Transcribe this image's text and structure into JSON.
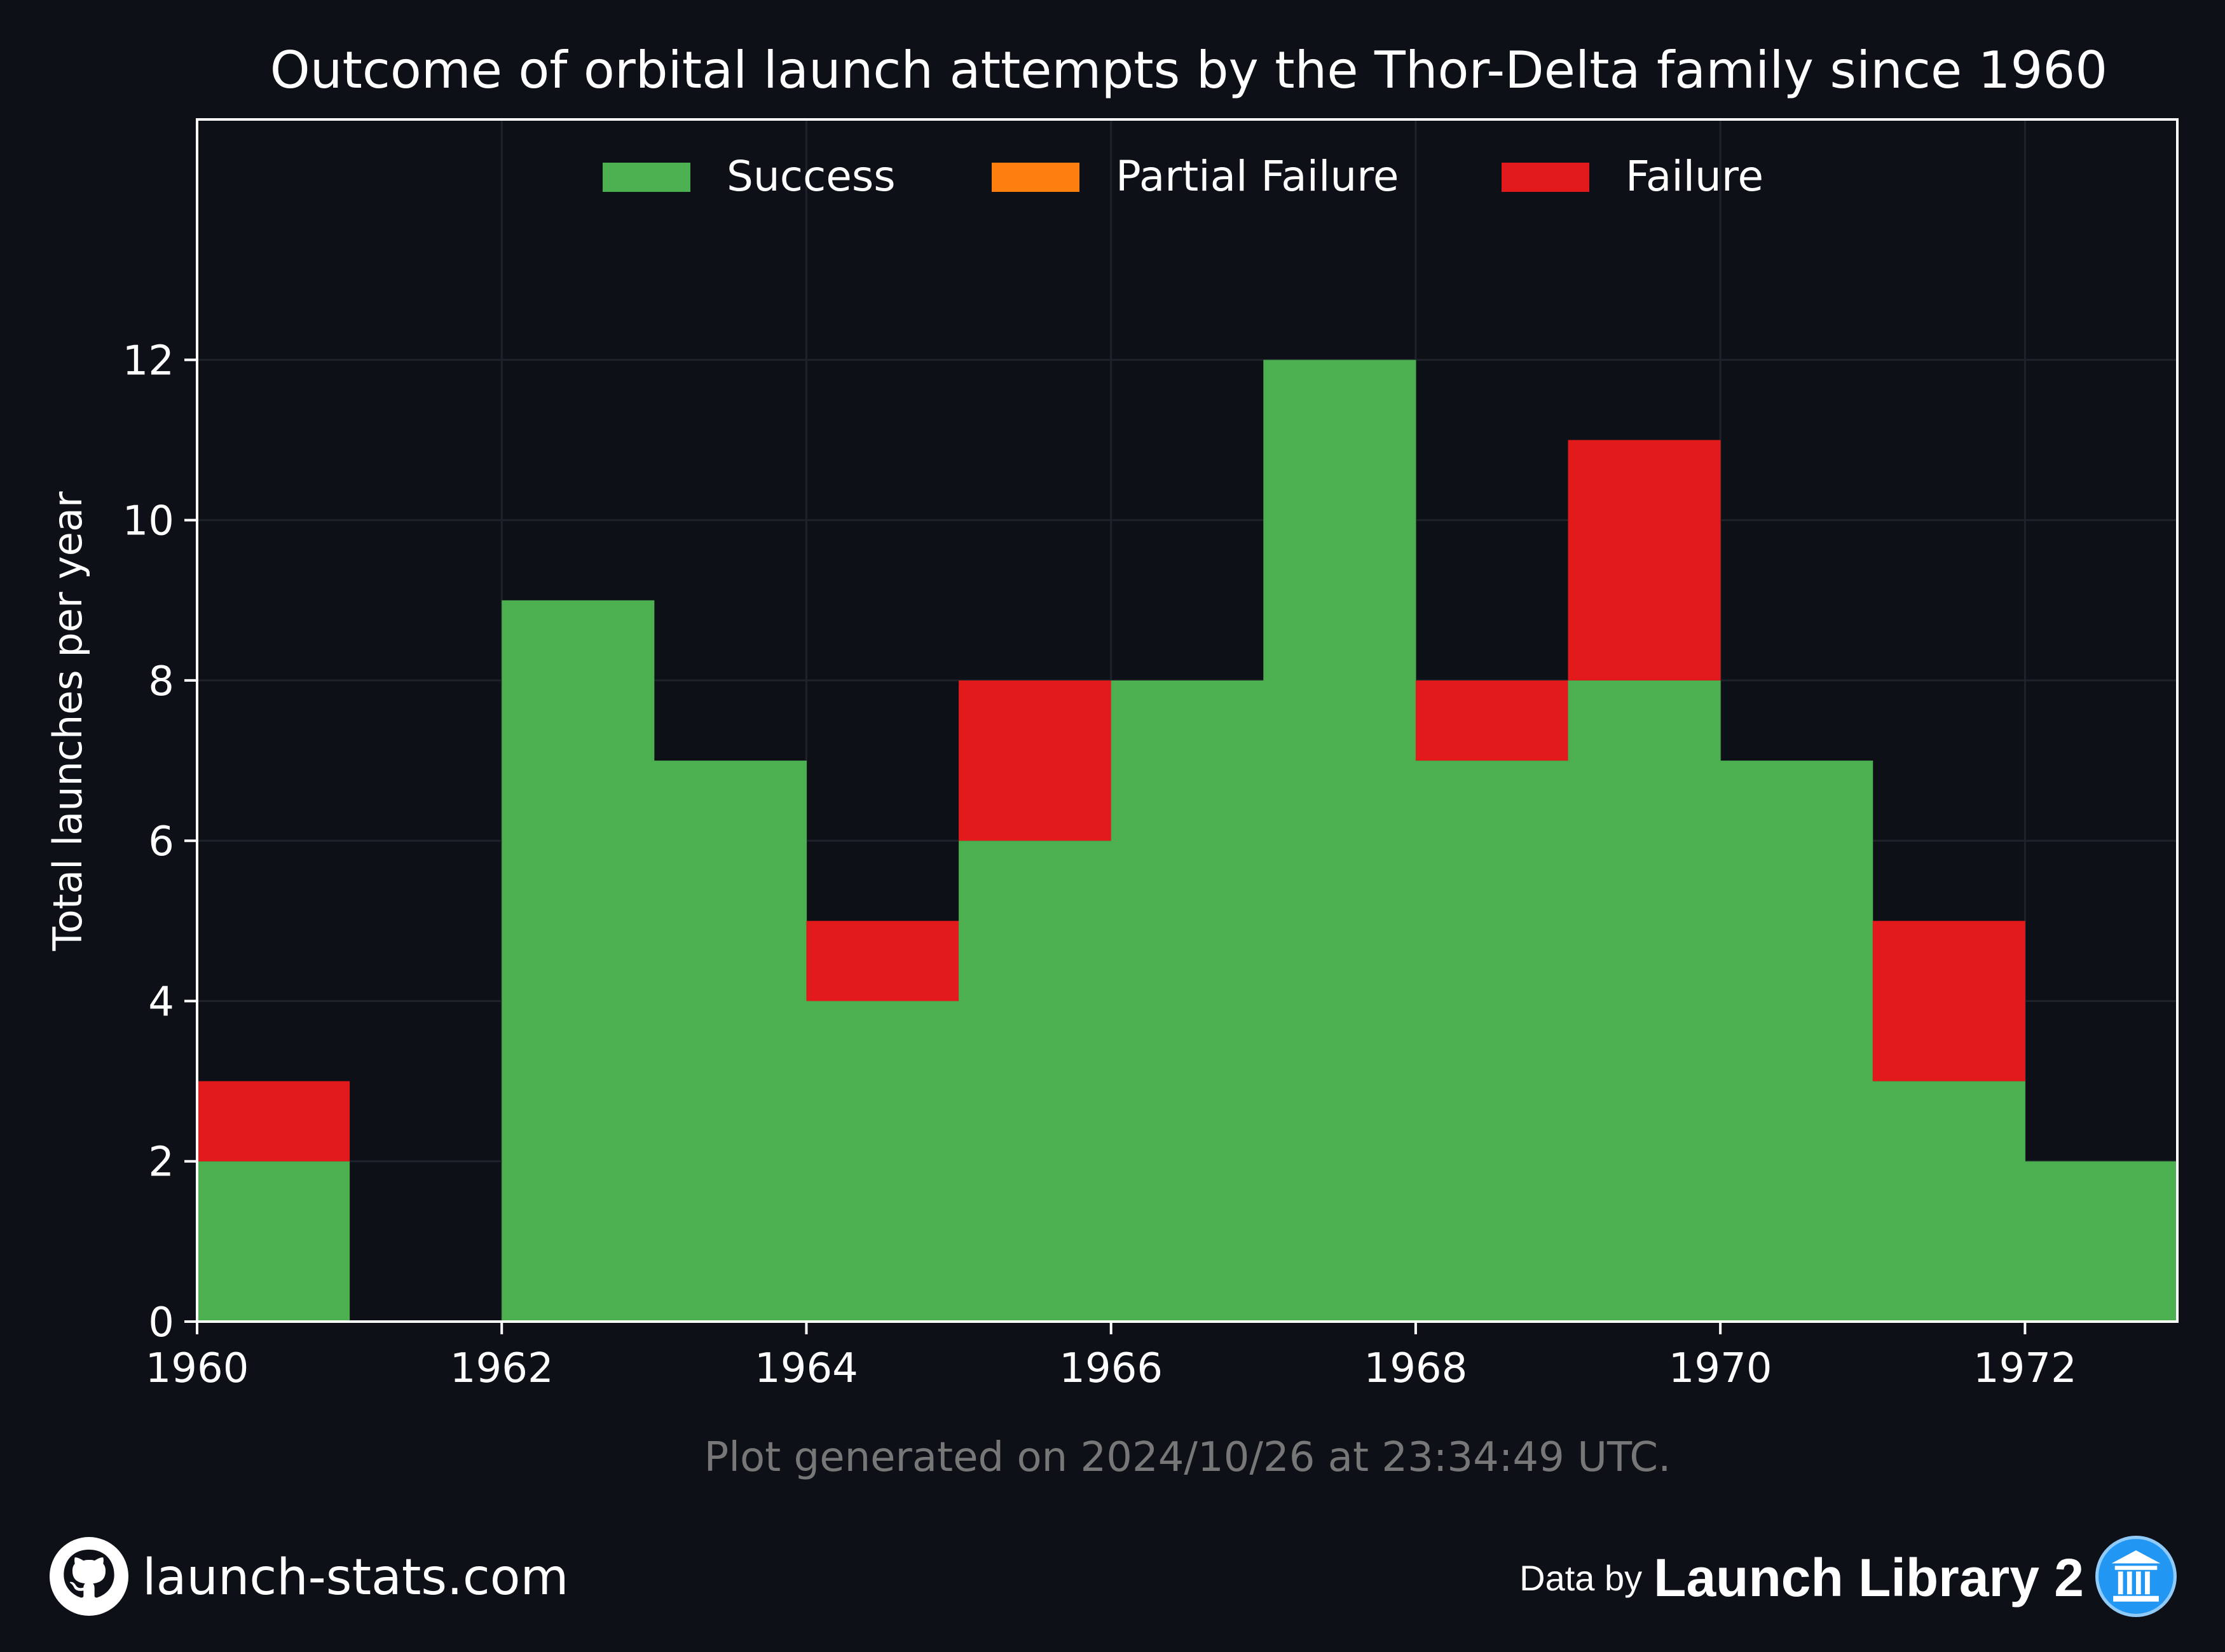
{
  "chart_data": {
    "type": "bar",
    "stacked": true,
    "title": "Outcome of orbital launch attempts by the Thor-Delta family since 1960",
    "xlabel": "",
    "ylabel": "Total launches per year",
    "categories": [
      1960,
      1961,
      1962,
      1963,
      1964,
      1965,
      1966,
      1967,
      1968,
      1969,
      1970,
      1971,
      1972
    ],
    "series": [
      {
        "name": "Success",
        "color": "#4caf50",
        "values": [
          2,
          0,
          9,
          7,
          4,
          6,
          8,
          12,
          7,
          8,
          7,
          3,
          2
        ]
      },
      {
        "name": "Partial Failure",
        "color": "#ff7f0e",
        "values": [
          0,
          0,
          0,
          0,
          0,
          0,
          0,
          0,
          0,
          0,
          0,
          0,
          0
        ]
      },
      {
        "name": "Failure",
        "color": "#e31a1c",
        "values": [
          1,
          0,
          0,
          0,
          1,
          2,
          0,
          0,
          1,
          3,
          0,
          2,
          0
        ]
      }
    ],
    "xlim": [
      1960,
      1973
    ],
    "ylim": [
      0,
      15
    ],
    "xticks": [
      1960,
      1962,
      1964,
      1966,
      1968,
      1970,
      1972
    ],
    "yticks": [
      0,
      2,
      4,
      6,
      8,
      10,
      12
    ],
    "grid": true,
    "legend_position": "top-center",
    "annotation": "Plot generated on 2024/10/26 at 23:34:49 UTC."
  },
  "colors": {
    "background": "#0d1017",
    "grid": "#1e222a",
    "axis": "#ffffff",
    "annotation_text": "#777777"
  },
  "footer": {
    "site": "launch-stats.com",
    "site_icon": "github-icon",
    "data_by": "Data by",
    "brand": "Launch Library 2",
    "brand_icon": "library-icon"
  }
}
